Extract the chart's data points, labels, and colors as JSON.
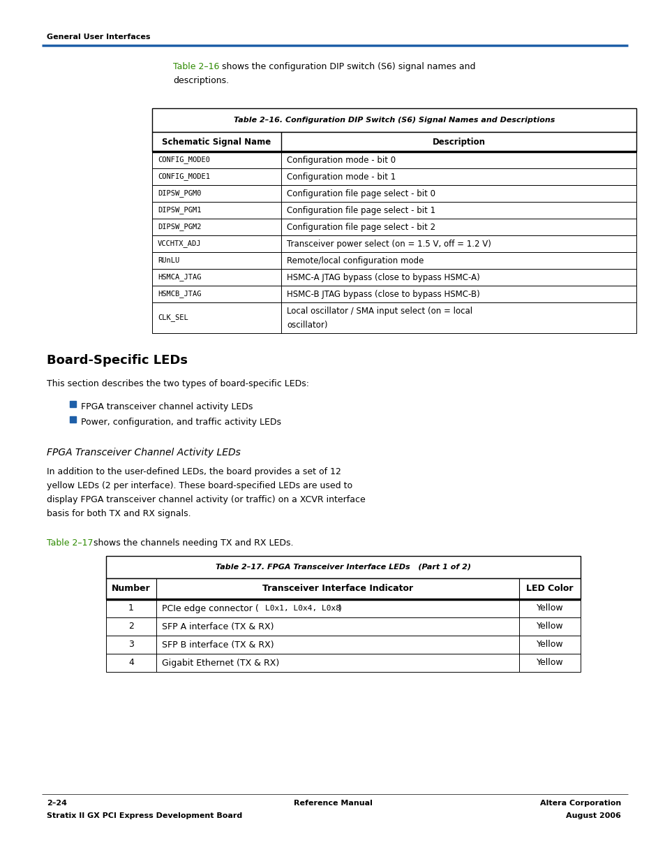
{
  "page_bg": "#ffffff",
  "header_text": "General User Interfaces",
  "header_line_color": "#1e5fa8",
  "table16_title": "Table 2–16. Configuration DIP Switch (S6) Signal Names and Descriptions",
  "table16_col_headers": [
    "Schematic Signal Name",
    "Description"
  ],
  "table16_rows": [
    [
      "CONFIG_MODE0",
      "Configuration mode - bit 0",
      false
    ],
    [
      "CONFIG_MODE1",
      "Configuration mode - bit 1",
      false
    ],
    [
      "DIPSW_PGM0",
      "Configuration file page select - bit 0",
      false
    ],
    [
      "DIPSW_PGM1",
      "Configuration file page select - bit 1",
      false
    ],
    [
      "DIPSW_PGM2",
      "Configuration file page select - bit 2",
      false
    ],
    [
      "VCCHTX_ADJ",
      "Transceiver power select (on = 1.5 V, off = 1.2 V)",
      false
    ],
    [
      "RUnLU",
      "Remote/local configuration mode",
      false
    ],
    [
      "HSMCA_JTAG",
      "HSMC-A JTAG bypass (close to bypass HSMC-A)",
      false
    ],
    [
      "HSMCB_JTAG",
      "HSMC-B JTAG bypass (close to bypass HSMC-B)",
      false
    ],
    [
      "CLK_SEL",
      "Local oscillator / SMA input select (on = local\noscillator)",
      true
    ]
  ],
  "section_heading": "Board-Specific LEDs",
  "section_intro": "This section describes the two types of board-specific LEDs:",
  "bullet_color": "#1e5fa8",
  "bullets": [
    "FPGA transceiver channel activity LEDs",
    "Power, configuration, and traffic activity LEDs"
  ],
  "subsection_heading": "FPGA Transceiver Channel Activity LEDs",
  "body_lines": [
    "In addition to the user-defined LEDs, the board provides a set of 12",
    "yellow LEDs (2 per interface). These board-specified LEDs are used to",
    "display FPGA transceiver channel activity (or traffic) on a XCVR interface",
    "basis for both TX and RX signals."
  ],
  "table17_intro_green": "Table 2–17",
  "table17_intro_rest": " shows the channels needing TX and RX LEDs.",
  "table17_title": "Table 2–17. FPGA Transceiver Interface LEDs   (Part 1 of 2)",
  "table17_col_headers": [
    "Number",
    "Transceiver Interface Indicator",
    "LED Color"
  ],
  "table17_rows": [
    [
      "1",
      "PCIe edge connector (L0x1, L0x4, L0x8)",
      "Yellow",
      true
    ],
    [
      "2",
      "SFP A interface (TX & RX)",
      "Yellow",
      false
    ],
    [
      "3",
      "SFP B interface (TX & RX)",
      "Yellow",
      false
    ],
    [
      "4",
      "Gigabit Ethernet (TX & RX)",
      "Yellow",
      false
    ]
  ],
  "footer_left_top": "2–24",
  "footer_center": "Reference Manual",
  "footer_right_top": "Altera Corporation",
  "footer_left_bot": "Stratix II GX PCI Express Development Board",
  "footer_right_bot": "August 2006",
  "link_color": "#2d8a00",
  "intro16_green": "Table 2–16",
  "intro16_rest": " shows the configuration DIP switch (S6) signal names and",
  "intro16_line2": "descriptions."
}
